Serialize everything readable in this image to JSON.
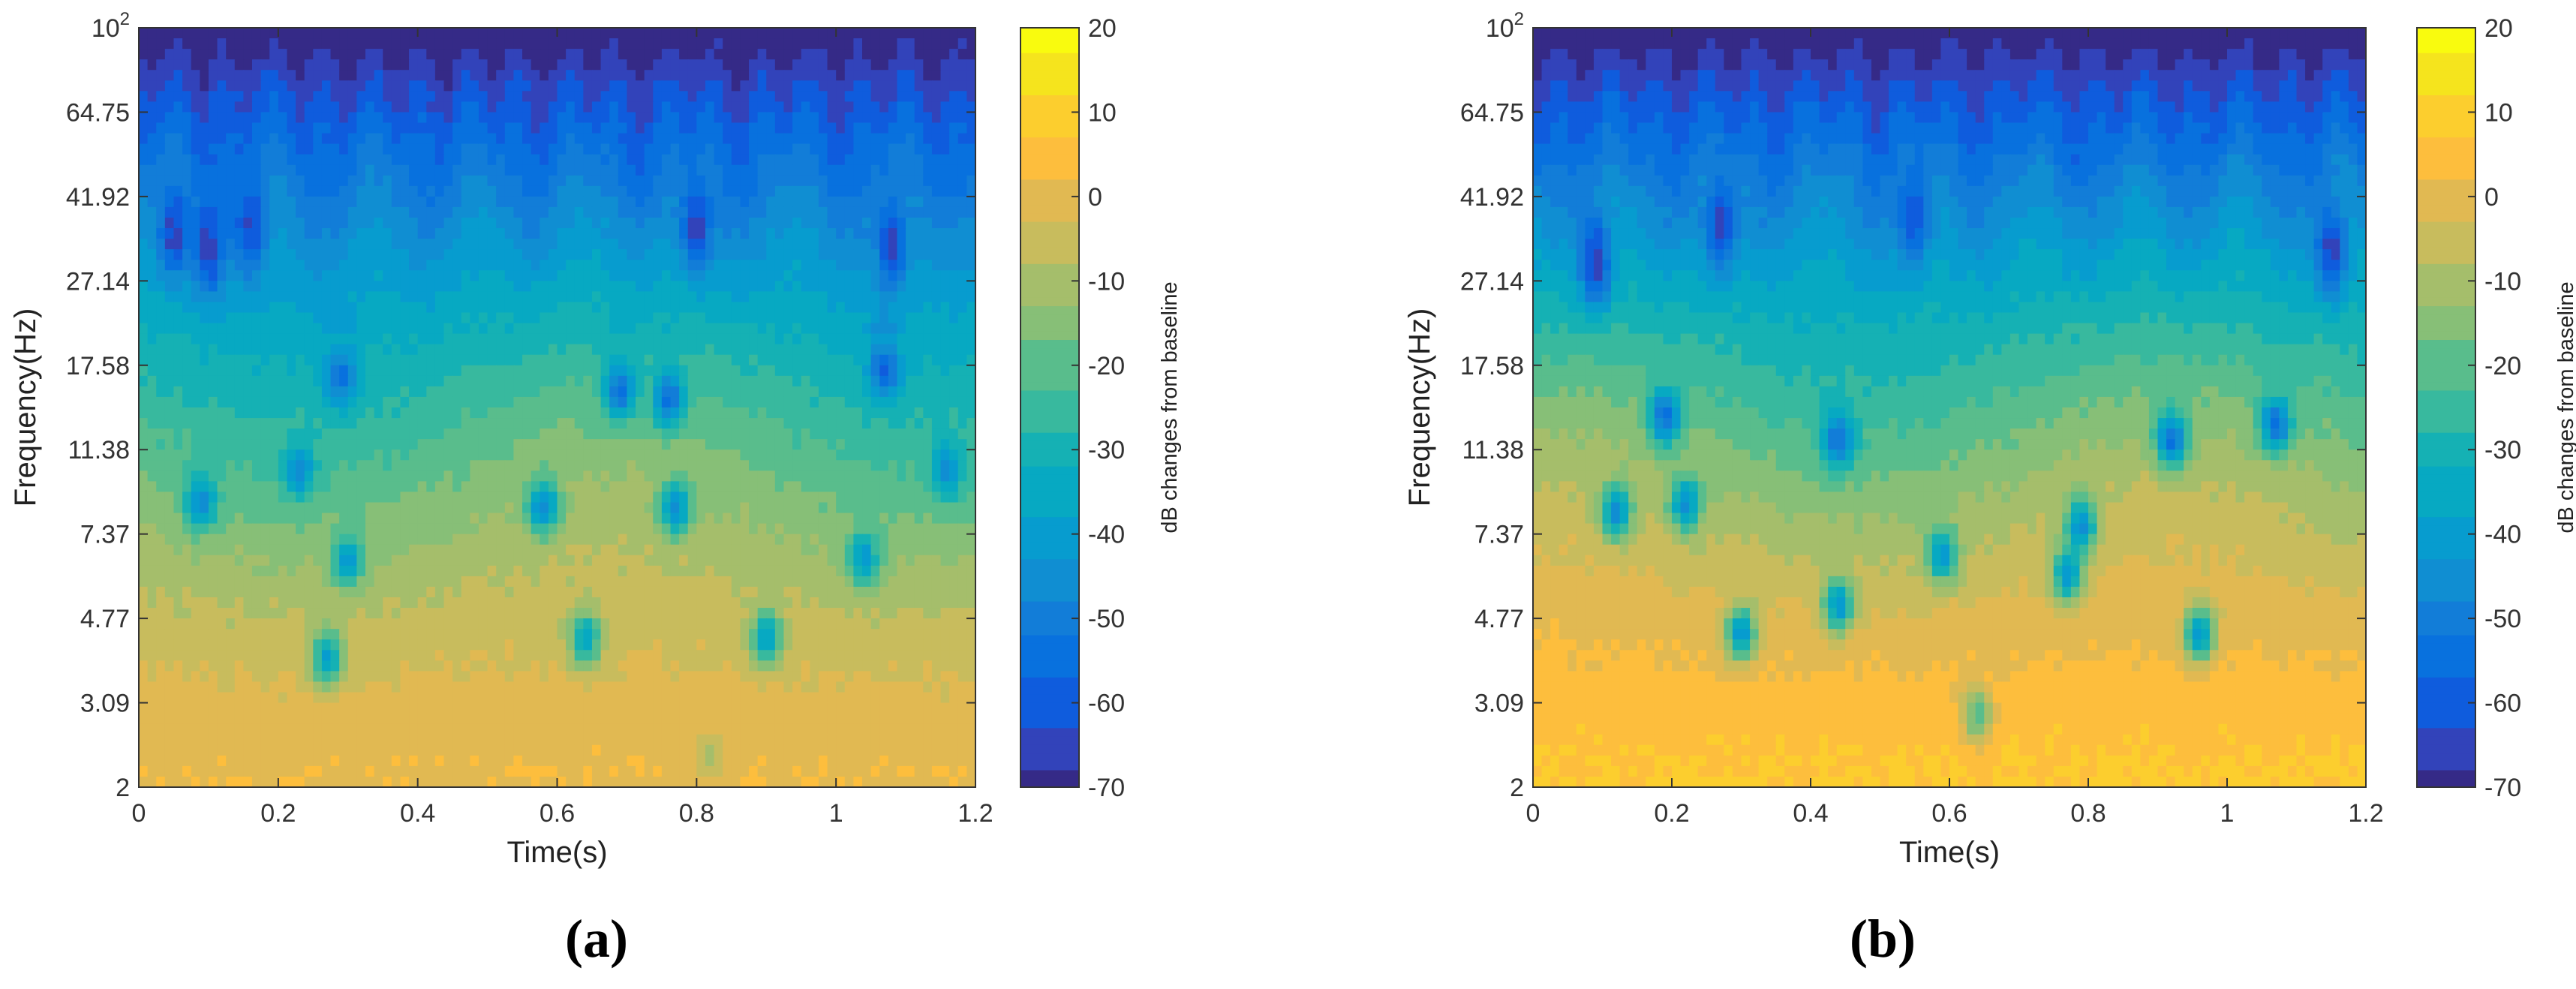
{
  "chart_data": [
    {
      "panel": "a",
      "type": "heatmap",
      "caption": "(a)",
      "xlabel": "Time(s)",
      "ylabel": "Frequency(Hz)",
      "colorbar_label": "dB changes from baseline",
      "xlim": [
        0,
        1.2
      ],
      "x_ticks": [
        "0",
        "0.2",
        "0.4",
        "0.6",
        "0.8",
        "1",
        "1.2"
      ],
      "y_ticks": [
        "10^2",
        "64.75",
        "41.92",
        "27.14",
        "17.58",
        "11.38",
        "7.37",
        "4.77",
        "3.09",
        "2"
      ],
      "y_scale": "log",
      "ylim": [
        2,
        100
      ],
      "color_range": [
        -70,
        20
      ],
      "colorbar_ticks": [
        "20",
        "10",
        "0",
        "-10",
        "-20",
        "-30",
        "-40",
        "-50",
        "-60",
        "-70"
      ],
      "colormap": "parula",
      "surface": {
        "base_low_freq_db": 2,
        "trough_points": [
          {
            "t": 0.27,
            "f": 3.9,
            "db": -38
          },
          {
            "t": 0.3,
            "f": 6.4,
            "db": -40
          },
          {
            "t": 0.09,
            "f": 8.7,
            "db": -45
          },
          {
            "t": 0.23,
            "f": 10.2,
            "db": -45
          },
          {
            "t": 0.58,
            "f": 8.5,
            "db": -45
          },
          {
            "t": 0.77,
            "f": 8.4,
            "db": -45
          },
          {
            "t": 0.64,
            "f": 4.3,
            "db": -38
          },
          {
            "t": 0.9,
            "f": 4.3,
            "db": -40
          },
          {
            "t": 1.04,
            "f": 6.5,
            "db": -42
          },
          {
            "t": 1.16,
            "f": 10.2,
            "db": -45
          },
          {
            "t": 0.82,
            "f": 2.3,
            "db": -8
          },
          {
            "t": 0.29,
            "f": 16.5,
            "db": -55
          },
          {
            "t": 0.69,
            "f": 15.5,
            "db": -55
          },
          {
            "t": 0.76,
            "f": 14.8,
            "db": -55
          },
          {
            "t": 1.07,
            "f": 17.0,
            "db": -60
          },
          {
            "t": 0.05,
            "f": 35.0,
            "db": -65
          },
          {
            "t": 0.1,
            "f": 32.0,
            "db": -66
          },
          {
            "t": 0.16,
            "f": 36.0,
            "db": -64
          },
          {
            "t": 0.8,
            "f": 36.0,
            "db": -66
          },
          {
            "t": 1.08,
            "f": 33.0,
            "db": -64
          }
        ]
      }
    },
    {
      "panel": "b",
      "type": "heatmap",
      "caption": "(b)",
      "xlabel": "Time(s)",
      "ylabel": "Frequency(Hz)",
      "colorbar_label": "dB changes from baseline",
      "xlim": [
        0,
        1.2
      ],
      "x_ticks": [
        "0",
        "0.2",
        "0.4",
        "0.6",
        "0.8",
        "1",
        "1.2"
      ],
      "y_ticks": [
        "10^2",
        "64.75",
        "41.92",
        "27.14",
        "17.58",
        "11.38",
        "7.37",
        "4.77",
        "3.09",
        "2"
      ],
      "y_scale": "log",
      "ylim": [
        2,
        100
      ],
      "color_range": [
        -70,
        20
      ],
      "colorbar_ticks": [
        "20",
        "10",
        "0",
        "-10",
        "-20",
        "-30",
        "-40",
        "-50",
        "-60",
        "-70"
      ],
      "colormap": "parula",
      "surface": {
        "base_low_freq_db": 8,
        "trough_points": [
          {
            "t": 0.3,
            "f": 4.4,
            "db": -42
          },
          {
            "t": 0.44,
            "f": 5.1,
            "db": -42
          },
          {
            "t": 0.64,
            "f": 2.9,
            "db": -22
          },
          {
            "t": 0.59,
            "f": 6.6,
            "db": -42
          },
          {
            "t": 0.77,
            "f": 6.0,
            "db": -42
          },
          {
            "t": 0.79,
            "f": 7.7,
            "db": -45
          },
          {
            "t": 0.96,
            "f": 4.4,
            "db": -42
          },
          {
            "t": 0.12,
            "f": 8.3,
            "db": -45
          },
          {
            "t": 0.22,
            "f": 8.6,
            "db": -45
          },
          {
            "t": 0.19,
            "f": 13.5,
            "db": -55
          },
          {
            "t": 0.44,
            "f": 12.0,
            "db": -55
          },
          {
            "t": 0.92,
            "f": 12.0,
            "db": -55
          },
          {
            "t": 1.07,
            "f": 13.0,
            "db": -55
          },
          {
            "t": 0.09,
            "f": 30.0,
            "db": -66
          },
          {
            "t": 0.27,
            "f": 36.0,
            "db": -64
          },
          {
            "t": 0.55,
            "f": 38.0,
            "db": -62
          },
          {
            "t": 1.15,
            "f": 32.0,
            "db": -64
          }
        ]
      }
    }
  ]
}
